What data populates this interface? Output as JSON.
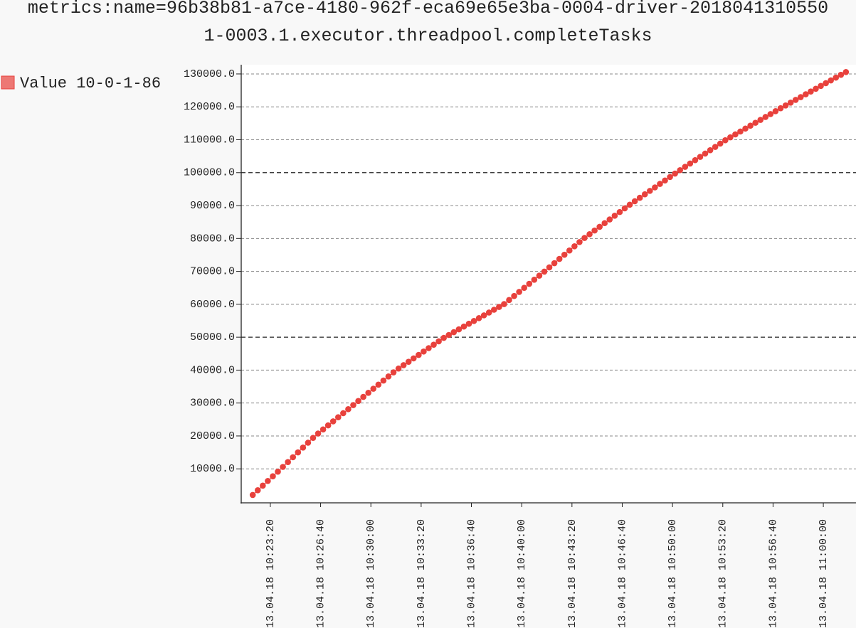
{
  "chart_data": {
    "type": "line",
    "title": "metrics:name=96b38b81-a7ce-4180-962f-eca69e65e3ba-0004-driver-20180413105501-0003.1.executor.threadpool.completeTasks",
    "x": [
      "2018-04-13T10:22:10",
      "2018-04-13T10:22:30",
      "2018-04-13T10:22:50",
      "2018-04-13T10:23:10",
      "2018-04-13T10:23:30",
      "2018-04-13T10:23:50",
      "2018-04-13T10:24:10",
      "2018-04-13T10:24:30",
      "2018-04-13T10:24:50",
      "2018-04-13T10:25:10",
      "2018-04-13T10:25:30",
      "2018-04-13T10:25:50",
      "2018-04-13T10:26:10",
      "2018-04-13T10:26:30",
      "2018-04-13T10:26:50",
      "2018-04-13T10:27:10",
      "2018-04-13T10:27:30",
      "2018-04-13T10:27:50",
      "2018-04-13T10:28:10",
      "2018-04-13T10:28:30",
      "2018-04-13T10:28:50",
      "2018-04-13T10:29:10",
      "2018-04-13T10:29:30",
      "2018-04-13T10:29:50",
      "2018-04-13T10:30:10",
      "2018-04-13T10:30:30",
      "2018-04-13T10:30:50",
      "2018-04-13T10:31:10",
      "2018-04-13T10:31:30",
      "2018-04-13T10:31:50",
      "2018-04-13T10:32:10",
      "2018-04-13T10:32:30",
      "2018-04-13T10:32:50",
      "2018-04-13T10:33:10",
      "2018-04-13T10:33:30",
      "2018-04-13T10:33:50",
      "2018-04-13T10:34:10",
      "2018-04-13T10:34:30",
      "2018-04-13T10:34:50",
      "2018-04-13T10:35:10",
      "2018-04-13T10:35:30",
      "2018-04-13T10:35:50",
      "2018-04-13T10:36:10",
      "2018-04-13T10:36:30",
      "2018-04-13T10:36:50",
      "2018-04-13T10:37:10",
      "2018-04-13T10:37:30",
      "2018-04-13T10:37:50",
      "2018-04-13T10:38:10",
      "2018-04-13T10:38:30",
      "2018-04-13T10:38:50",
      "2018-04-13T10:39:10",
      "2018-04-13T10:39:30",
      "2018-04-13T10:39:50",
      "2018-04-13T10:40:10",
      "2018-04-13T10:40:30",
      "2018-04-13T10:40:50",
      "2018-04-13T10:41:10",
      "2018-04-13T10:41:30",
      "2018-04-13T10:41:50",
      "2018-04-13T10:42:10",
      "2018-04-13T10:42:30",
      "2018-04-13T10:42:50",
      "2018-04-13T10:43:10",
      "2018-04-13T10:43:30",
      "2018-04-13T10:43:50",
      "2018-04-13T10:44:10",
      "2018-04-13T10:44:30",
      "2018-04-13T10:44:50",
      "2018-04-13T10:45:10",
      "2018-04-13T10:45:30",
      "2018-04-13T10:45:50",
      "2018-04-13T10:46:10",
      "2018-04-13T10:46:30",
      "2018-04-13T10:46:50",
      "2018-04-13T10:47:10",
      "2018-04-13T10:47:30",
      "2018-04-13T10:47:50",
      "2018-04-13T10:48:10",
      "2018-04-13T10:48:30",
      "2018-04-13T10:48:50",
      "2018-04-13T10:49:10",
      "2018-04-13T10:49:30",
      "2018-04-13T10:49:50",
      "2018-04-13T10:50:10",
      "2018-04-13T10:50:30",
      "2018-04-13T10:50:50",
      "2018-04-13T10:51:10",
      "2018-04-13T10:51:30",
      "2018-04-13T10:51:50",
      "2018-04-13T10:52:10",
      "2018-04-13T10:52:30",
      "2018-04-13T10:52:50",
      "2018-04-13T10:53:10",
      "2018-04-13T10:53:30",
      "2018-04-13T10:53:50",
      "2018-04-13T10:54:10",
      "2018-04-13T10:54:30",
      "2018-04-13T10:54:50",
      "2018-04-13T10:55:10",
      "2018-04-13T10:55:30",
      "2018-04-13T10:55:50",
      "2018-04-13T10:56:10",
      "2018-04-13T10:56:30",
      "2018-04-13T10:56:50",
      "2018-04-13T10:57:10",
      "2018-04-13T10:57:30",
      "2018-04-13T10:57:50",
      "2018-04-13T10:58:10",
      "2018-04-13T10:58:30",
      "2018-04-13T10:58:50",
      "2018-04-13T10:59:10",
      "2018-04-13T10:59:30",
      "2018-04-13T10:59:50",
      "2018-04-13T11:00:10",
      "2018-04-13T11:00:30",
      "2018-04-13T11:00:50",
      "2018-04-13T11:01:10",
      "2018-04-13T11:01:30"
    ],
    "series": [
      {
        "name": "Value 10-0-1-86",
        "color": "#e8413c",
        "values": [
          2070,
          3490,
          4900,
          6320,
          7740,
          9150,
          10590,
          12060,
          13530,
          15000,
          16470,
          17940,
          19410,
          20740,
          21970,
          23210,
          24440,
          25680,
          26910,
          28140,
          29380,
          30620,
          31860,
          33110,
          34350,
          35590,
          36830,
          38070,
          39320,
          40470,
          41500,
          42540,
          43570,
          44610,
          45650,
          46680,
          47720,
          48750,
          49790,
          50680,
          51530,
          52390,
          53240,
          54090,
          54940,
          55790,
          56650,
          57500,
          58350,
          59200,
          60060,
          61300,
          62530,
          63760,
          65000,
          66230,
          67470,
          68700,
          69930,
          71220,
          72500,
          73780,
          75060,
          76350,
          77630,
          78910,
          80170,
          81290,
          82420,
          83540,
          84660,
          85790,
          86910,
          88040,
          89160,
          90260,
          91320,
          92370,
          93420,
          94470,
          95520,
          96580,
          97630,
          98680,
          99730,
          100760,
          101770,
          102780,
          103790,
          104800,
          105810,
          106820,
          107830,
          108840,
          109850,
          110750,
          111630,
          112510,
          113400,
          114280,
          115160,
          116040,
          116920,
          117810,
          118690,
          119570,
          120420,
          121270,
          122120,
          122960,
          123810,
          124650,
          125500,
          126350,
          127190,
          128040,
          128880,
          129730,
          130580
        ]
      }
    ],
    "xlim": [
      "2018-04-13T10:21:27",
      "2018-04-13T11:02:10"
    ],
    "xticks": [
      {
        "value": "2018-04-13T10:23:20",
        "label": "13.04.18 10:23:20"
      },
      {
        "value": "2018-04-13T10:26:40",
        "label": "13.04.18 10:26:40"
      },
      {
        "value": "2018-04-13T10:30:00",
        "label": "13.04.18 10:30:00"
      },
      {
        "value": "2018-04-13T10:33:20",
        "label": "13.04.18 10:33:20"
      },
      {
        "value": "2018-04-13T10:36:40",
        "label": "13.04.18 10:36:40"
      },
      {
        "value": "2018-04-13T10:40:00",
        "label": "13.04.18 10:40:00"
      },
      {
        "value": "2018-04-13T10:43:20",
        "label": "13.04.18 10:43:20"
      },
      {
        "value": "2018-04-13T10:46:40",
        "label": "13.04.18 10:46:40"
      },
      {
        "value": "2018-04-13T10:50:00",
        "label": "13.04.18 10:50:00"
      },
      {
        "value": "2018-04-13T10:53:20",
        "label": "13.04.18 10:53:20"
      },
      {
        "value": "2018-04-13T10:56:40",
        "label": "13.04.18 10:56:40"
      },
      {
        "value": "2018-04-13T11:00:00",
        "label": "13.04.18 11:00:00"
      }
    ],
    "ylim": [
      0,
      132800
    ],
    "yticks": [
      {
        "value": 10000,
        "label": "10000.0"
      },
      {
        "value": 20000,
        "label": "20000.0"
      },
      {
        "value": 30000,
        "label": "30000.0"
      },
      {
        "value": 40000,
        "label": "40000.0"
      },
      {
        "value": 50000,
        "label": "50000.0"
      },
      {
        "value": 60000,
        "label": "60000.0"
      },
      {
        "value": 70000,
        "label": "70000.0"
      },
      {
        "value": 80000,
        "label": "80000.0"
      },
      {
        "value": 90000,
        "label": "90000.0"
      },
      {
        "value": 100000,
        "label": "100000.0"
      },
      {
        "value": 110000,
        "label": "110000.0"
      },
      {
        "value": 120000,
        "label": "120000.0"
      },
      {
        "value": 130000,
        "label": "130000.0"
      }
    ],
    "grid": true,
    "legend": "left"
  }
}
